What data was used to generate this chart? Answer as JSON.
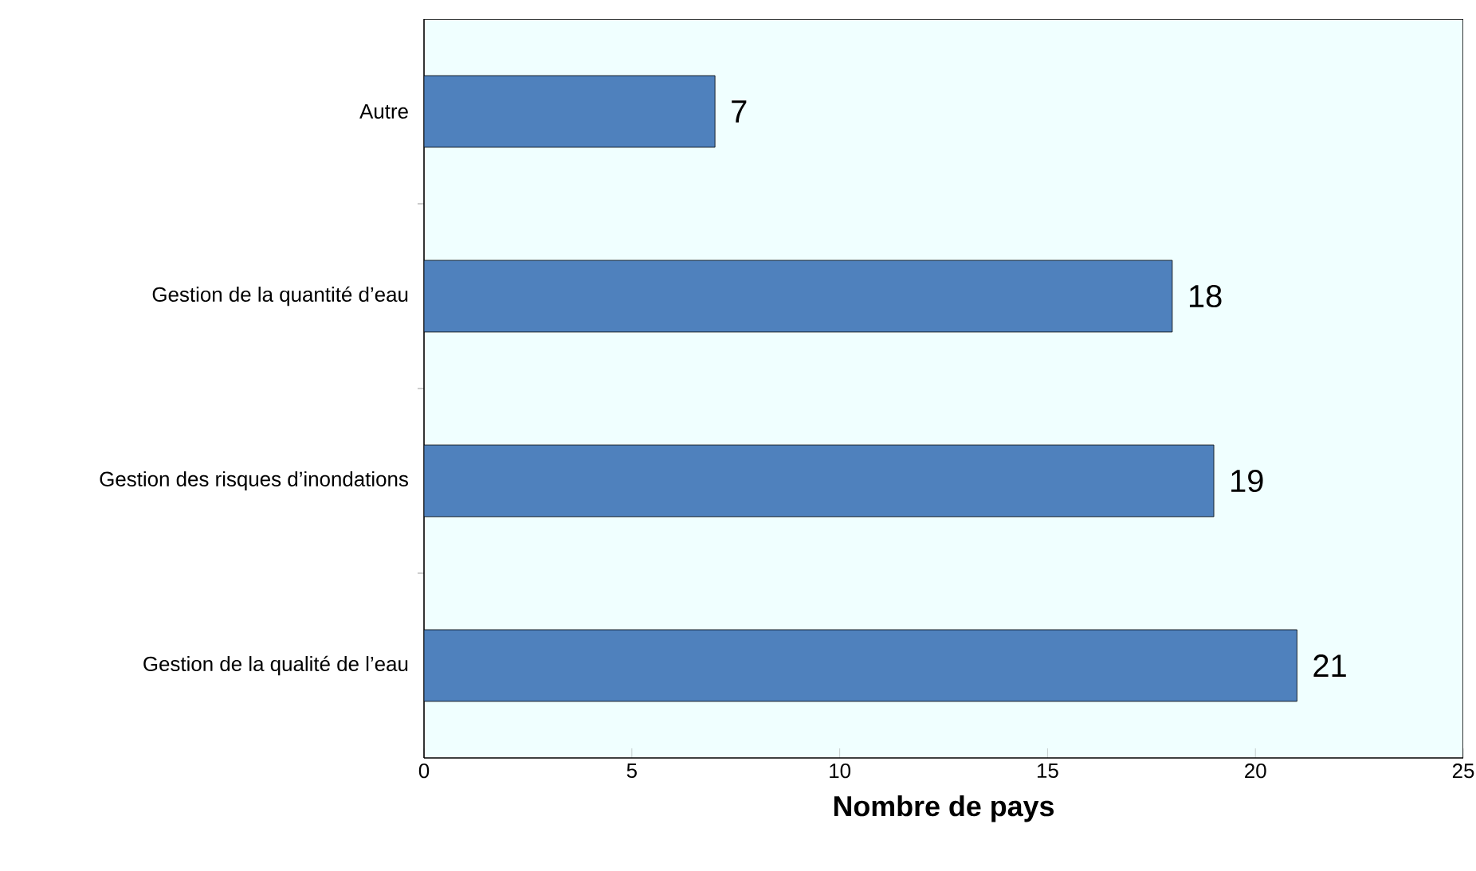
{
  "chart_data": {
    "type": "bar",
    "orientation": "horizontal",
    "xlabel": "Nombre de pays",
    "categories": [
      "Autre",
      "Gestion de la quantité d’eau",
      "Gestion des risques d’inondations",
      "Gestion de la qualité de l’eau"
    ],
    "values": [
      7,
      18,
      19,
      21
    ],
    "color": "#4f81bd",
    "xlim": [
      0,
      25
    ],
    "xticks": [
      0,
      5,
      10,
      15,
      20,
      25
    ],
    "data_labels": true
  }
}
